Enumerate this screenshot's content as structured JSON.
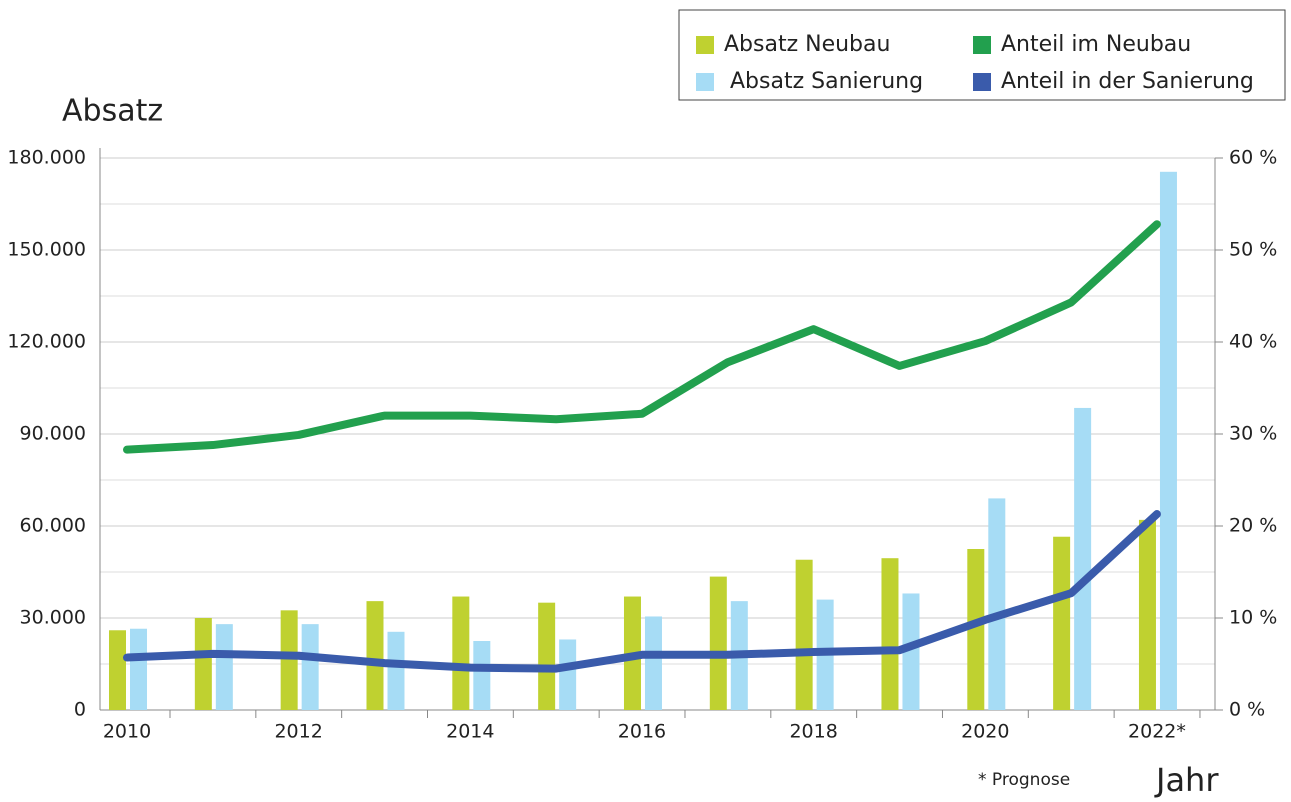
{
  "chart_data": {
    "type": "bar",
    "y_label": "Absatz",
    "x_label": "Jahr",
    "annotation": "* Prognose",
    "categories": [
      "2010",
      null,
      "2012",
      null,
      "2014",
      null,
      "2016",
      null,
      "2018",
      null,
      "2020",
      null,
      "2022*"
    ],
    "series": [
      {
        "name": "Absatz Neubau",
        "color": "#bfd130",
        "values": [
          26000,
          30000,
          32500,
          35500,
          37000,
          35000,
          37000,
          43500,
          49000,
          49500,
          52500,
          56500,
          62000
        ]
      },
      {
        "name": "Absatz Sanierung",
        "color": "#a6dcf5",
        "values": [
          26500,
          28000,
          28000,
          25500,
          22500,
          23000,
          30500,
          35500,
          36000,
          38000,
          69000,
          98500,
          175500
        ]
      },
      {
        "name": "Anteil im Neubau",
        "color": "#22a04e",
        "type": "line",
        "axis": "y2",
        "values": [
          28.3,
          28.8,
          29.9,
          32.0,
          32.0,
          31.6,
          32.2,
          37.8,
          41.4,
          37.4,
          40.1,
          44.3,
          52.8
        ]
      },
      {
        "name": "Anteil in der Sanierung",
        "color": "#3a5bab",
        "type": "line",
        "axis": "y2",
        "values": [
          5.7,
          6.1,
          5.9,
          5.1,
          4.6,
          4.5,
          6.0,
          6.0,
          6.3,
          6.5,
          9.8,
          12.7,
          21.3
        ]
      }
    ],
    "ylim": [
      0,
      180000
    ],
    "yticks": [
      0,
      {
        "value": 30000,
        "label": "30.000"
      },
      {
        "value": 60000,
        "label": "60.000"
      },
      {
        "value": 90000,
        "label": "90.000"
      },
      {
        "value": 120000,
        "label": "120.000"
      },
      {
        "value": 150000,
        "label": "150.000"
      },
      {
        "value": 180000,
        "label": "180.000"
      }
    ],
    "y2lim": [
      0,
      60
    ],
    "y2ticks": [
      {
        "value": 0,
        "label": "0 %"
      },
      {
        "value": 10,
        "label": "10 %"
      },
      {
        "value": 20,
        "label": "20 %"
      },
      {
        "value": 30,
        "label": "30 %"
      },
      {
        "value": 40,
        "label": "40 %"
      },
      {
        "value": 50,
        "label": "50 %"
      },
      {
        "value": 60,
        "label": "60 %"
      }
    ],
    "grid": true
  }
}
